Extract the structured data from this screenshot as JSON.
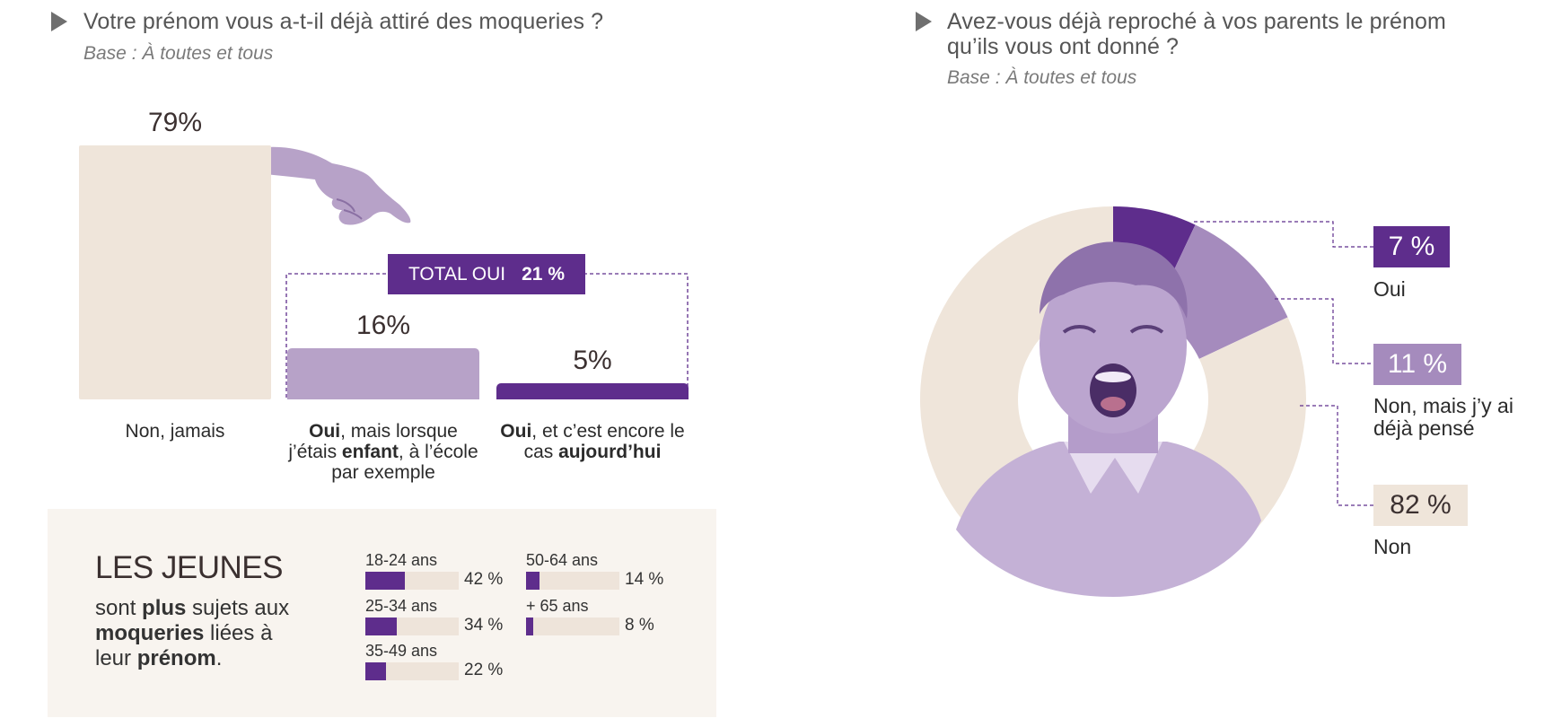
{
  "left": {
    "question": "Votre prénom vous a-t-il déjà attiré des moqueries ?",
    "base": "Base : À toutes et tous",
    "total": {
      "label": "TOTAL OUI",
      "value": "21 %"
    }
  },
  "right": {
    "question_line1": "Avez-vous déjà reproché à vos parents le prénom",
    "question_line2": "qu’ils vous ont donné ?",
    "base": "Base : À toutes et tous"
  },
  "jeunes": {
    "title": "LES JEUNES",
    "text": [
      "sont ",
      "plus",
      " sujets aux ",
      "moqueries",
      " liées à leur ",
      "prénom",
      "."
    ]
  },
  "chart_data": [
    {
      "type": "bar",
      "categories": [
        "Non, jamais",
        "Oui, mais lorsque j’étais enfant, à l’école par exemple",
        "Oui, et c’est encore le cas aujourd’hui"
      ],
      "values": [
        79,
        16,
        5
      ],
      "value_labels": [
        "79%",
        "16%",
        "5%"
      ],
      "colors": [
        "#efe5da",
        "#b7a2c8",
        "#5e2d8c"
      ],
      "label_parts": [
        [
          [
            "Non, jamais",
            false
          ]
        ],
        [
          [
            "Oui",
            true
          ],
          [
            ", mais lorsque j’étais ",
            false
          ],
          [
            "enfant",
            true
          ],
          [
            ", à l’école par exemple",
            false
          ]
        ],
        [
          [
            "Oui",
            true
          ],
          [
            ", et c’est encore le cas ",
            false
          ],
          [
            "aujourd’hui",
            true
          ]
        ]
      ]
    },
    {
      "type": "bar",
      "categories": [
        "18-24 ans",
        "25-34 ans",
        "35-49 ans",
        "50-64 ans",
        "+ 65 ans"
      ],
      "values": [
        42,
        34,
        22,
        14,
        8
      ],
      "value_labels": [
        "42 %",
        "34 %",
        "22 %",
        "14 %",
        "8 %"
      ],
      "color": "#5e2d8c"
    },
    {
      "type": "pie",
      "categories": [
        "Oui",
        "Non, mais j’y ai déjà pensé",
        "Non"
      ],
      "values": [
        7,
        11,
        82
      ],
      "value_labels": [
        "7 %",
        "11 %",
        "82 %"
      ],
      "colors": [
        "#5e2d8c",
        "#a58bbd",
        "#efe5da"
      ],
      "badge_text_colors": [
        "#ffffff",
        "#ffffff",
        "#3b3030"
      ]
    }
  ]
}
